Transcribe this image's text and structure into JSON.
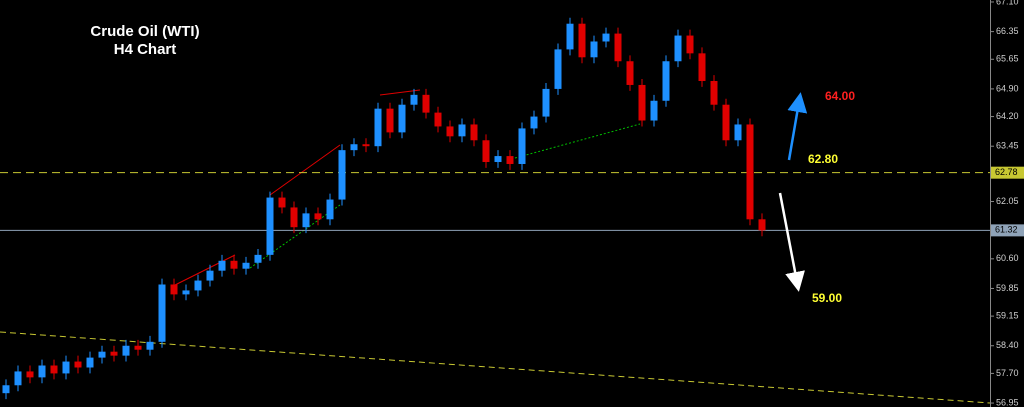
{
  "chart_data": {
    "type": "candlestick",
    "title": "Crude Oil (WTI)",
    "subtitle": "H4 Chart",
    "up_color": "#1e90ff",
    "down_color": "#e00000",
    "open": [
      57.2,
      57.4,
      57.75,
      57.6,
      57.9,
      57.7,
      58.0,
      57.85,
      58.1,
      58.25,
      58.15,
      58.4,
      58.3,
      58.5,
      59.95,
      59.7,
      59.8,
      60.05,
      60.3,
      60.55,
      60.35,
      60.5,
      60.7,
      62.15,
      61.9,
      61.4,
      61.75,
      61.6,
      62.1,
      63.35,
      63.5,
      63.45,
      64.4,
      63.8,
      64.5,
      64.75,
      64.3,
      63.95,
      63.7,
      64.0,
      63.6,
      63.05,
      63.2,
      63.0,
      63.9,
      64.2,
      64.9,
      65.9,
      66.55,
      65.7,
      66.1,
      66.3,
      65.6,
      65.0,
      64.1,
      64.6,
      65.6,
      66.25,
      65.8,
      65.1,
      64.5,
      63.6,
      64.0,
      61.6
    ],
    "high": [
      57.55,
      57.9,
      57.9,
      58.05,
      58.05,
      58.15,
      58.15,
      58.25,
      58.4,
      58.4,
      58.55,
      58.55,
      58.65,
      60.1,
      60.1,
      59.95,
      60.2,
      60.45,
      60.7,
      60.7,
      60.65,
      60.85,
      62.3,
      62.3,
      62.05,
      61.9,
      61.9,
      62.25,
      63.5,
      63.65,
      63.65,
      64.55,
      64.55,
      64.65,
      64.9,
      64.9,
      64.45,
      64.1,
      64.15,
      64.15,
      63.75,
      63.35,
      63.35,
      64.05,
      64.35,
      65.05,
      66.05,
      66.7,
      66.7,
      66.25,
      66.45,
      66.45,
      65.75,
      65.15,
      64.75,
      65.75,
      66.4,
      66.4,
      65.95,
      65.25,
      64.65,
      64.15,
      64.15,
      61.75
    ],
    "low": [
      57.05,
      57.25,
      57.45,
      57.45,
      57.55,
      57.55,
      57.7,
      57.7,
      57.95,
      58.0,
      58.0,
      58.15,
      58.15,
      58.35,
      59.55,
      59.55,
      59.65,
      59.9,
      60.15,
      60.2,
      60.2,
      60.35,
      60.55,
      61.75,
      61.25,
      61.25,
      61.45,
      61.45,
      61.95,
      63.2,
      63.3,
      63.3,
      63.65,
      63.65,
      64.35,
      64.15,
      63.8,
      63.55,
      63.55,
      63.45,
      62.9,
      62.9,
      62.85,
      62.85,
      63.75,
      64.05,
      64.75,
      65.75,
      65.55,
      65.55,
      65.95,
      65.45,
      64.85,
      63.95,
      63.95,
      64.45,
      65.45,
      65.65,
      64.95,
      64.35,
      63.45,
      63.45,
      61.45,
      61.17
    ],
    "close": [
      57.4,
      57.75,
      57.6,
      57.9,
      57.7,
      58.0,
      57.85,
      58.1,
      58.25,
      58.15,
      58.4,
      58.3,
      58.5,
      59.95,
      59.7,
      59.8,
      60.05,
      60.3,
      60.55,
      60.35,
      60.5,
      60.7,
      62.15,
      61.9,
      61.4,
      61.75,
      61.6,
      62.1,
      63.35,
      63.5,
      63.45,
      64.4,
      63.8,
      64.5,
      64.75,
      64.3,
      63.95,
      63.7,
      64.0,
      63.6,
      63.05,
      63.2,
      63.0,
      63.9,
      64.2,
      64.9,
      65.9,
      66.55,
      65.7,
      66.1,
      66.3,
      65.6,
      65.0,
      64.1,
      64.6,
      65.6,
      66.25,
      65.8,
      65.1,
      64.5,
      63.6,
      64.0,
      61.6,
      61.32
    ],
    "ylim": [
      56.85,
      67.15
    ],
    "yticks": [
      {
        "value": 67.1,
        "label": "67.10"
      },
      66.35,
      65.65,
      {
        "value": 64.9,
        "label": "64.90"
      },
      {
        "value": 64.2,
        "label": "64.20"
      },
      63.45,
      62.05,
      {
        "value": 60.6,
        "label": "60.60"
      },
      59.85,
      59.15,
      {
        "value": 58.4,
        "label": "58.40"
      },
      {
        "value": 57.7,
        "label": "57.70"
      },
      56.95
    ],
    "price_lines": [
      {
        "value": 62.78,
        "color": "#c8c832"
      },
      {
        "value": 61.32,
        "color": "#8fa3b8"
      }
    ],
    "annotations": [
      {
        "text": "64.00",
        "color": "#ff2020"
      },
      {
        "text": "62.80",
        "color": "#ffff33"
      },
      {
        "text": "59.00",
        "color": "#ffff33"
      }
    ]
  }
}
